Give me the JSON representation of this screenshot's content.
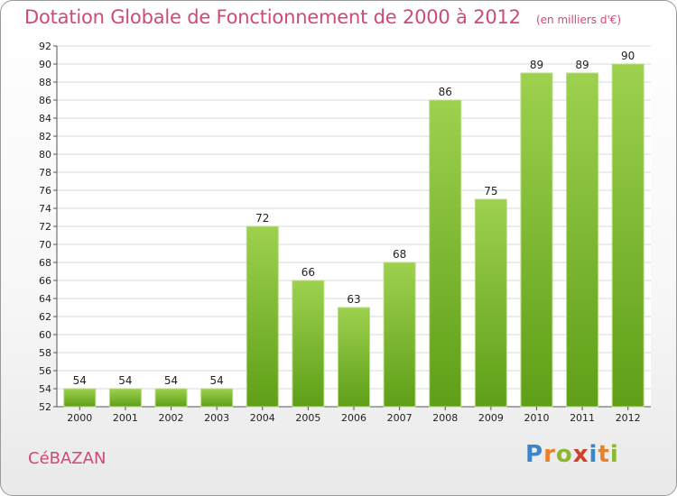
{
  "header": {
    "title": "Dotation Globale de Fonctionnement de 2000 à 2012",
    "subtitle": "(en milliers d'€)"
  },
  "footer": {
    "commune": "CéBAZAN",
    "logo": "Proxiti"
  },
  "colors": {
    "title": "#d04a73",
    "bar_top": "#9dd14e",
    "bar_bottom": "#5f9f17",
    "grid": "#d8d8d8",
    "logo_letters": [
      "#3a86c8",
      "#e8822a",
      "#8cb82e",
      "#d0402a",
      "#3a86c8",
      "#e8822a",
      "#8cb82e"
    ]
  },
  "chart_data": {
    "type": "bar",
    "categories": [
      "2000",
      "2001",
      "2002",
      "2003",
      "2004",
      "2005",
      "2006",
      "2007",
      "2008",
      "2009",
      "2010",
      "2011",
      "2012"
    ],
    "values": [
      54,
      54,
      54,
      54,
      72,
      66,
      63,
      68,
      86,
      75,
      89,
      89,
      90
    ],
    "ylim": [
      52,
      92
    ],
    "yticks": [
      52,
      54,
      56,
      58,
      60,
      62,
      64,
      66,
      68,
      70,
      72,
      74,
      76,
      78,
      80,
      82,
      84,
      86,
      88,
      90,
      92
    ],
    "grid": true,
    "show_value_labels": true
  }
}
